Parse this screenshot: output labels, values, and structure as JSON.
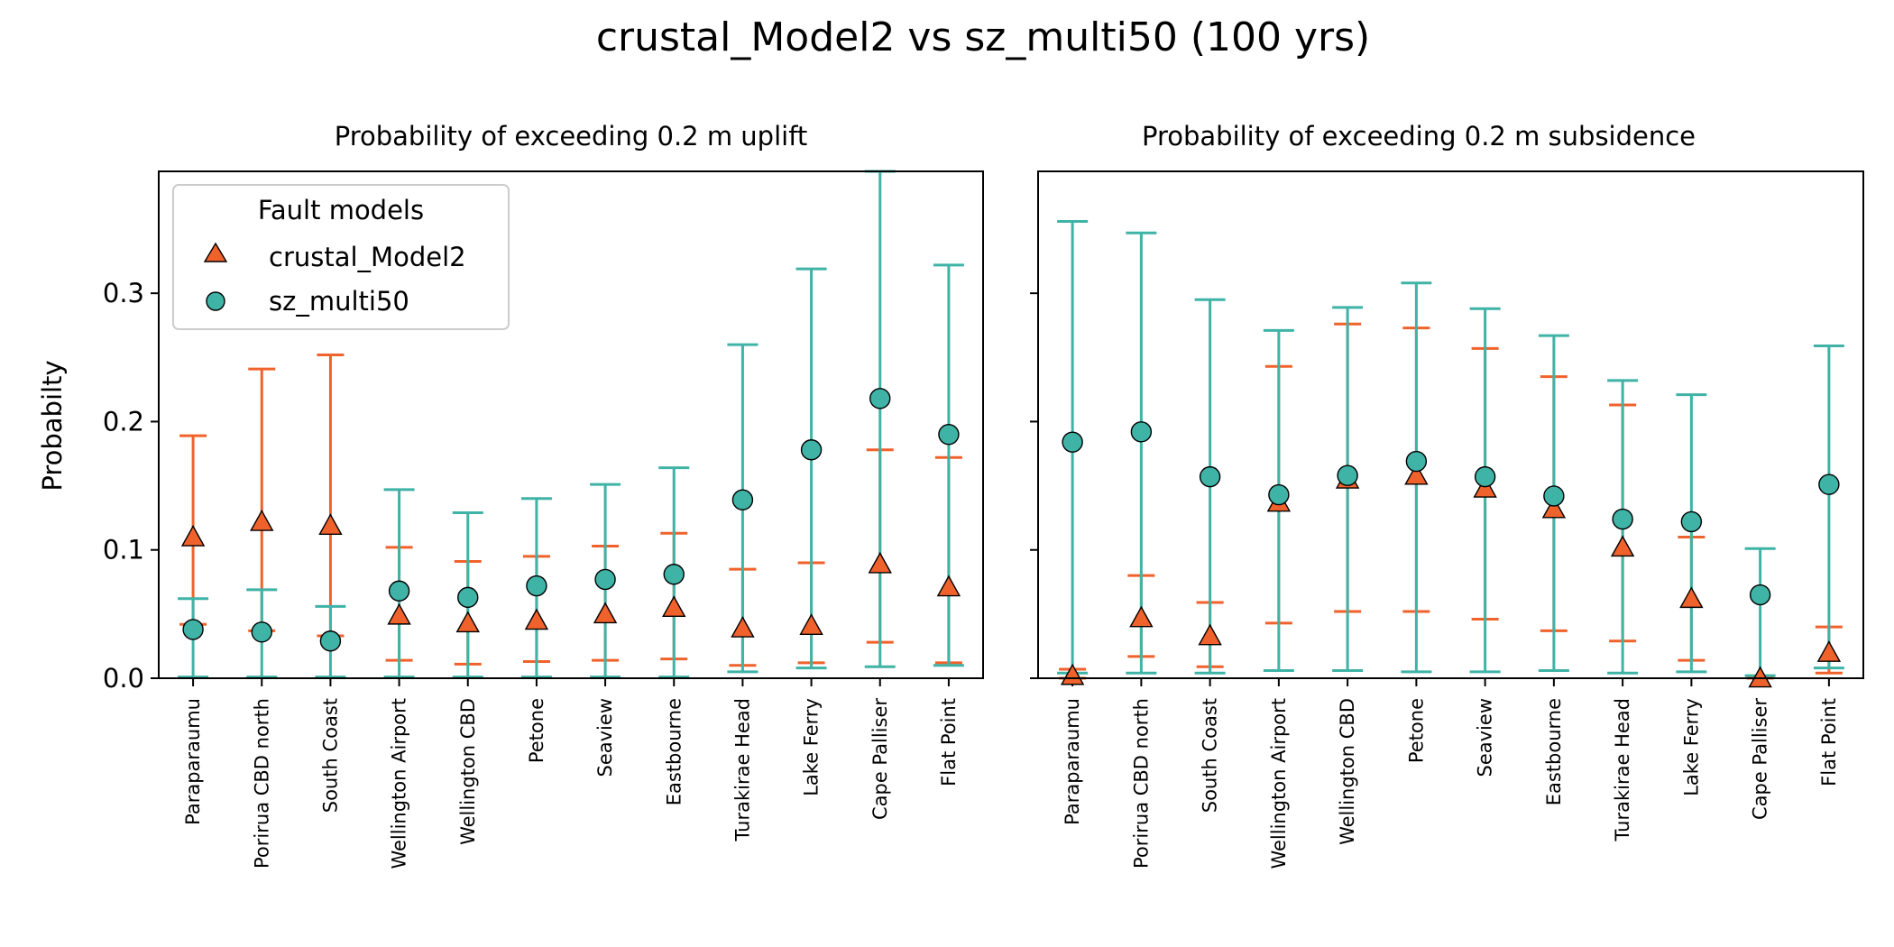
{
  "figure_title": "crustal_Model2 vs sz_multi50 (100 yrs)",
  "chart_data": [
    {
      "type": "scatter",
      "title": "Probability of exceeding 0.2 m uplift",
      "ylabel": "Probabilty",
      "xlabel": "",
      "ylim": [
        0,
        0.395
      ],
      "yticks": [
        "0.0",
        "0.1",
        "0.2",
        "0.3"
      ],
      "categories": [
        "Paraparaumu",
        "Porirua CBD north",
        "South Coast",
        "Wellington Airport",
        "Wellington CBD",
        "Petone",
        "Seaview",
        "Eastbourne",
        "Turakirae Head",
        "Lake Ferry",
        "Cape Palliser",
        "Flat Point"
      ],
      "legend": {
        "title": "Fault models",
        "position": "top-left"
      },
      "grid": false,
      "series": [
        {
          "name": "crustal_Model2",
          "marker": "triangle",
          "color": "#f0622c",
          "values": [
            0.11,
            0.122,
            0.119,
            0.049,
            0.043,
            0.045,
            0.05,
            0.055,
            0.039,
            0.041,
            0.089,
            0.071
          ],
          "lower": [
            0.042,
            0.037,
            0.033,
            0.014,
            0.011,
            0.013,
            0.014,
            0.015,
            0.01,
            0.012,
            0.028,
            0.012
          ],
          "upper": [
            0.189,
            0.241,
            0.252,
            0.102,
            0.091,
            0.095,
            0.103,
            0.113,
            0.085,
            0.09,
            0.178,
            0.172
          ]
        },
        {
          "name": "sz_multi50",
          "marker": "circle",
          "color": "#3fb3a6",
          "values": [
            0.038,
            0.036,
            0.029,
            0.068,
            0.063,
            0.072,
            0.077,
            0.081,
            0.139,
            0.178,
            0.218,
            0.19
          ],
          "lower": [
            0.001,
            0.001,
            0.001,
            0.001,
            0.001,
            0.001,
            0.001,
            0.001,
            0.005,
            0.008,
            0.009,
            0.01
          ],
          "upper": [
            0.062,
            0.069,
            0.056,
            0.147,
            0.129,
            0.14,
            0.151,
            0.164,
            0.26,
            0.319,
            0.395,
            0.322
          ]
        }
      ]
    },
    {
      "type": "scatter",
      "title": "Probability of exceeding 0.2 m subsidence",
      "ylabel": "",
      "xlabel": "",
      "ylim": [
        0,
        0.395
      ],
      "categories": [
        "Paraparaumu",
        "Porirua CBD north",
        "South Coast",
        "Wellington Airport",
        "Wellington CBD",
        "Petone",
        "Seaview",
        "Eastbourne",
        "Turakirae Head",
        "Lake Ferry",
        "Cape Palliser",
        "Flat Point"
      ],
      "grid": false,
      "series": [
        {
          "name": "crustal_Model2",
          "marker": "triangle",
          "color": "#f0622c",
          "values": [
            0.002,
            0.047,
            0.033,
            0.137,
            0.155,
            0.158,
            0.148,
            0.132,
            0.102,
            0.062,
            0.0,
            0.02
          ],
          "lower": [
            0.0,
            0.017,
            0.009,
            0.043,
            0.052,
            0.052,
            0.046,
            0.037,
            0.029,
            0.014,
            0.0,
            0.004
          ],
          "upper": [
            0.007,
            0.08,
            0.059,
            0.243,
            0.276,
            0.273,
            0.257,
            0.235,
            0.213,
            0.11,
            0.001,
            0.04
          ]
        },
        {
          "name": "sz_multi50",
          "marker": "circle",
          "color": "#3fb3a6",
          "values": [
            0.184,
            0.192,
            0.157,
            0.143,
            0.158,
            0.169,
            0.157,
            0.142,
            0.124,
            0.122,
            0.065,
            0.151
          ],
          "lower": [
            0.004,
            0.004,
            0.004,
            0.006,
            0.006,
            0.005,
            0.005,
            0.006,
            0.004,
            0.005,
            0.002,
            0.008
          ],
          "upper": [
            0.356,
            0.347,
            0.295,
            0.271,
            0.289,
            0.308,
            0.288,
            0.267,
            0.232,
            0.221,
            0.101,
            0.259
          ]
        }
      ]
    }
  ]
}
